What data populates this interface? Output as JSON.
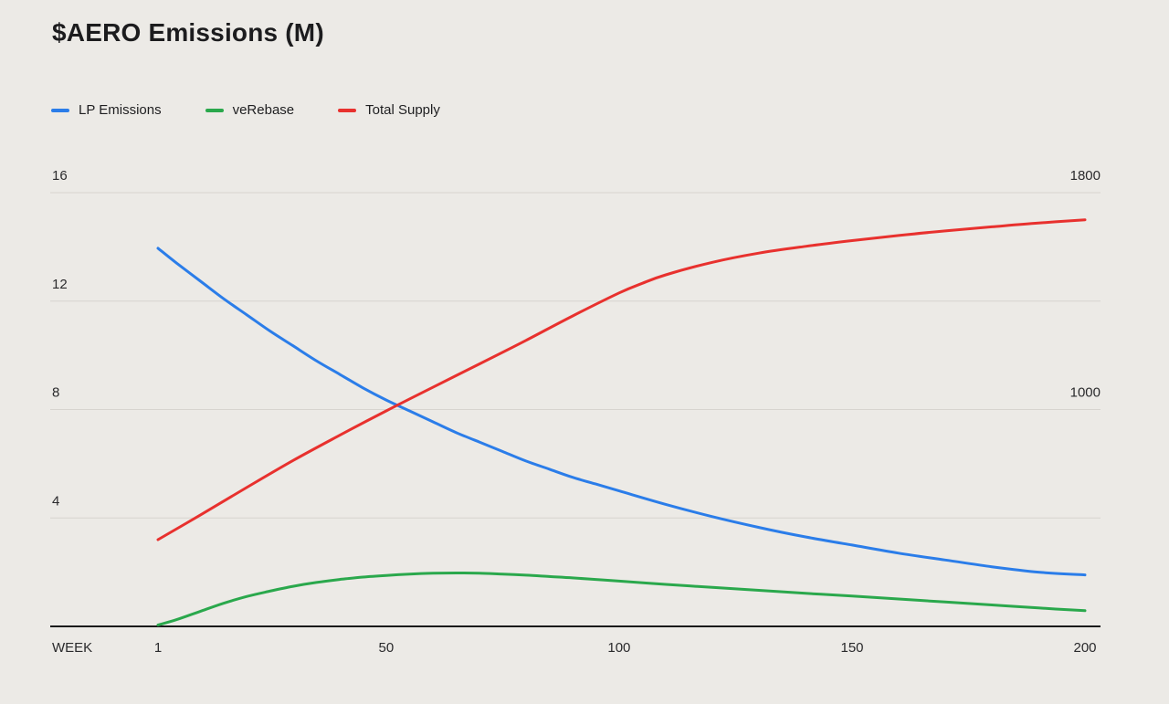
{
  "chart": {
    "title": "$AERO Emissions (M)"
  },
  "chart_data": {
    "type": "line",
    "title": "$AERO Emissions (M)",
    "x_axis_label": "WEEK",
    "x_ticks": [
      1,
      50,
      100,
      150,
      200
    ],
    "x_range": [
      1,
      200
    ],
    "y_left_ticks": [
      4,
      8,
      12,
      16
    ],
    "y_left_range": [
      0,
      16
    ],
    "y_right_ticks": [
      1000,
      1800
    ],
    "y_right_range": [
      200,
      1800
    ],
    "grid": true,
    "legend_position": "top-left",
    "background_color": "#eceae6",
    "gridline_color": "#d7d4cf",
    "axis_line_color": "#1a1a1a",
    "series": [
      {
        "name": "LP Emissions",
        "axis": "left",
        "color": "#2b7de9",
        "points": [
          [
            1,
            13.95
          ],
          [
            5,
            13.4
          ],
          [
            10,
            12.75
          ],
          [
            15,
            12.1
          ],
          [
            20,
            11.5
          ],
          [
            25,
            10.9
          ],
          [
            30,
            10.35
          ],
          [
            35,
            9.8
          ],
          [
            40,
            9.3
          ],
          [
            45,
            8.8
          ],
          [
            50,
            8.35
          ],
          [
            55,
            7.95
          ],
          [
            60,
            7.55
          ],
          [
            65,
            7.15
          ],
          [
            70,
            6.8
          ],
          [
            75,
            6.45
          ],
          [
            80,
            6.1
          ],
          [
            85,
            5.8
          ],
          [
            90,
            5.5
          ],
          [
            95,
            5.25
          ],
          [
            100,
            5.0
          ],
          [
            110,
            4.5
          ],
          [
            120,
            4.05
          ],
          [
            130,
            3.65
          ],
          [
            140,
            3.3
          ],
          [
            150,
            3.0
          ],
          [
            160,
            2.7
          ],
          [
            170,
            2.45
          ],
          [
            180,
            2.2
          ],
          [
            190,
            2.0
          ],
          [
            200,
            1.9
          ]
        ]
      },
      {
        "name": "veRebase",
        "axis": "left",
        "color": "#2aa84c",
        "points": [
          [
            1,
            0.05
          ],
          [
            5,
            0.25
          ],
          [
            10,
            0.55
          ],
          [
            15,
            0.85
          ],
          [
            20,
            1.1
          ],
          [
            25,
            1.3
          ],
          [
            30,
            1.48
          ],
          [
            35,
            1.62
          ],
          [
            40,
            1.73
          ],
          [
            45,
            1.82
          ],
          [
            50,
            1.88
          ],
          [
            55,
            1.93
          ],
          [
            60,
            1.96
          ],
          [
            65,
            1.97
          ],
          [
            70,
            1.96
          ],
          [
            75,
            1.93
          ],
          [
            80,
            1.89
          ],
          [
            85,
            1.84
          ],
          [
            90,
            1.79
          ],
          [
            95,
            1.73
          ],
          [
            100,
            1.67
          ],
          [
            110,
            1.55
          ],
          [
            120,
            1.44
          ],
          [
            130,
            1.33
          ],
          [
            140,
            1.22
          ],
          [
            150,
            1.12
          ],
          [
            160,
            1.01
          ],
          [
            170,
            0.9
          ],
          [
            180,
            0.79
          ],
          [
            190,
            0.68
          ],
          [
            200,
            0.58
          ]
        ]
      },
      {
        "name": "Total Supply",
        "axis": "right",
        "color": "#e8312e",
        "points": [
          [
            1,
            520
          ],
          [
            10,
            610
          ],
          [
            20,
            712
          ],
          [
            30,
            812
          ],
          [
            40,
            905
          ],
          [
            50,
            995
          ],
          [
            60,
            1082
          ],
          [
            70,
            1168
          ],
          [
            80,
            1255
          ],
          [
            90,
            1345
          ],
          [
            100,
            1430
          ],
          [
            105,
            1466
          ],
          [
            110,
            1497
          ],
          [
            120,
            1543
          ],
          [
            130,
            1577
          ],
          [
            140,
            1602
          ],
          [
            150,
            1623
          ],
          [
            160,
            1642
          ],
          [
            170,
            1659
          ],
          [
            180,
            1674
          ],
          [
            190,
            1688
          ],
          [
            200,
            1700
          ]
        ]
      }
    ]
  }
}
